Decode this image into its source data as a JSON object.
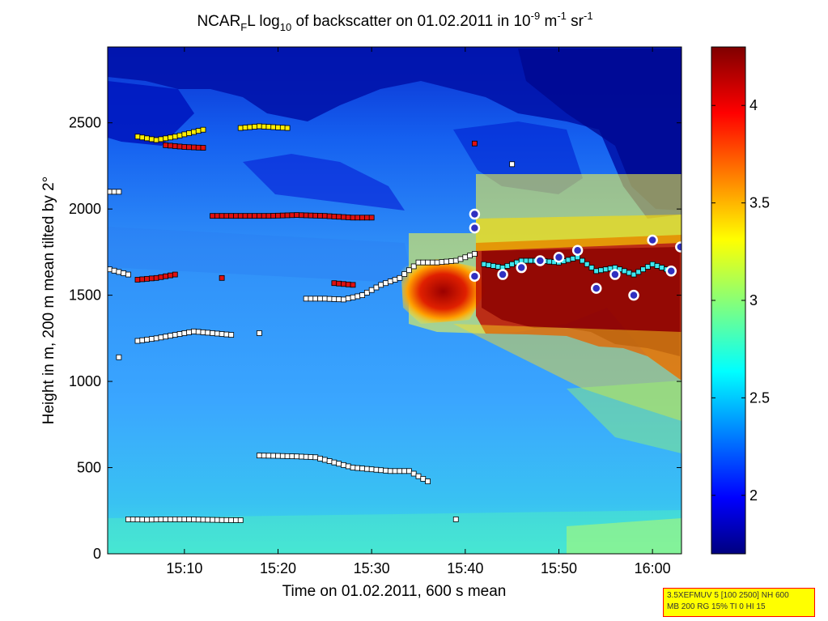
{
  "chart_data": {
    "type": "heatmap",
    "title": {
      "prefix": "NCAR",
      "sub1": "F",
      "mid": "L log",
      "sub2": "10",
      "text": " of backscatter on 01.02.2011 in 10",
      "exp1": "-9",
      "unit_m": " m",
      "exp2": "-1",
      "unit_sr": " sr",
      "exp3": "-1"
    },
    "xlabel": "Time on 01.02.2011, 600 s mean",
    "ylabel": "Height in m, 200 m mean tilted by 2°",
    "x_range": [
      "15:02",
      "16:03"
    ],
    "y_range": [
      0,
      3000
    ],
    "x_ticks": [
      "15:10",
      "15:20",
      "15:30",
      "15:40",
      "15:50",
      "16:00"
    ],
    "y_ticks": [
      "0",
      "500",
      "1000",
      "1500",
      "2000",
      "2500"
    ],
    "colorbar": {
      "range": [
        1.7,
        4.3
      ],
      "ticks": [
        "2",
        "2.5",
        "3",
        "3.5",
        "4"
      ],
      "colormap": "jet"
    },
    "colors": {
      "background_low": "#00007f",
      "fill_main": "#35a8ff",
      "high": "#8b0000",
      "marker_white": "#ffffff",
      "marker_cyan": "#3fe8f0",
      "marker_red": "#e01010",
      "marker_yellow": "#ffee00",
      "marker_magenta": "#ff40ff",
      "marker_circle": "#3030c0"
    },
    "marker_series": [
      {
        "color": "white",
        "points": [
          [
            "15:05",
            1235
          ],
          [
            "15:07",
            1250
          ],
          [
            "15:09",
            1270
          ],
          [
            "15:11",
            1290
          ],
          [
            "15:13",
            1280
          ],
          [
            "15:15",
            1270
          ]
        ]
      },
      {
        "color": "white",
        "points": [
          [
            "15:04",
            200
          ],
          [
            "15:06",
            198
          ],
          [
            "15:08",
            200
          ],
          [
            "15:10",
            200
          ],
          [
            "15:12",
            198
          ],
          [
            "15:14",
            196
          ],
          [
            "15:16",
            195
          ]
        ]
      },
      {
        "color": "white",
        "points": [
          [
            "15:18",
            570
          ],
          [
            "15:20",
            568
          ],
          [
            "15:22",
            565
          ],
          [
            "15:24",
            560
          ],
          [
            "15:26",
            530
          ],
          [
            "15:28",
            500
          ],
          [
            "15:30",
            490
          ],
          [
            "15:32",
            480
          ],
          [
            "15:34",
            480
          ],
          [
            "15:36",
            420
          ]
        ]
      },
      {
        "color": "white",
        "points": [
          [
            "15:23",
            1480
          ],
          [
            "15:25",
            1480
          ],
          [
            "15:27",
            1475
          ],
          [
            "15:29",
            1500
          ],
          [
            "15:31",
            1560
          ],
          [
            "15:33",
            1600
          ],
          [
            "15:35",
            1690
          ],
          [
            "15:37",
            1690
          ],
          [
            "15:39",
            1700
          ],
          [
            "15:41",
            1740
          ]
        ]
      },
      {
        "color": "cyan",
        "points": [
          [
            "15:42",
            1680
          ],
          [
            "15:44",
            1660
          ],
          [
            "15:46",
            1700
          ],
          [
            "15:48",
            1700
          ],
          [
            "15:50",
            1690
          ],
          [
            "15:52",
            1720
          ],
          [
            "15:54",
            1640
          ],
          [
            "15:56",
            1660
          ],
          [
            "15:58",
            1620
          ],
          [
            "16:00",
            1680
          ],
          [
            "16:02",
            1640
          ]
        ]
      },
      {
        "color": "red",
        "points": [
          [
            "15:13",
            1960
          ],
          [
            "15:16",
            1960
          ],
          [
            "15:19",
            1960
          ],
          [
            "15:22",
            1965
          ],
          [
            "15:25",
            1960
          ],
          [
            "15:28",
            1950
          ],
          [
            "15:30",
            1950
          ]
        ]
      },
      {
        "color": "red",
        "points": [
          [
            "15:05",
            1590
          ],
          [
            "15:07",
            1600
          ],
          [
            "15:09",
            1620
          ],
          [
            "15:14",
            1600
          ],
          [
            "15:26",
            1570
          ],
          [
            "15:28",
            1560
          ]
        ]
      },
      {
        "color": "yellow",
        "points": [
          [
            "15:05",
            2420
          ],
          [
            "15:07",
            2400
          ],
          [
            "15:09",
            2420
          ],
          [
            "15:12",
            2460
          ],
          [
            "15:16",
            2470
          ],
          [
            "15:18",
            2480
          ],
          [
            "15:21",
            2470
          ]
        ]
      },
      {
        "color": "red",
        "points": [
          [
            "15:08",
            2370
          ],
          [
            "15:10",
            2360
          ],
          [
            "15:12",
            2355
          ],
          [
            "15:41",
            2380
          ]
        ]
      },
      {
        "color": "white",
        "points": [
          [
            "15:02",
            2100
          ],
          [
            "15:03",
            2100
          ],
          [
            "15:02",
            1650
          ],
          [
            "15:04",
            1620
          ],
          [
            "15:03",
            1140
          ],
          [
            "15:18",
            1280
          ],
          [
            "15:39",
            200
          ],
          [
            "15:45",
            2260
          ]
        ]
      },
      {
        "color": "circle",
        "points": [
          [
            "15:41",
            1970
          ],
          [
            "15:41",
            1890
          ],
          [
            "15:41",
            1610
          ],
          [
            "15:44",
            1620
          ],
          [
            "15:46",
            1660
          ],
          [
            "15:48",
            1700
          ],
          [
            "15:50",
            1720
          ],
          [
            "15:52",
            1760
          ],
          [
            "15:54",
            1540
          ],
          [
            "15:56",
            1620
          ],
          [
            "15:58",
            1500
          ],
          [
            "16:00",
            1820
          ],
          [
            "16:02",
            1640
          ],
          [
            "16:03",
            1780
          ]
        ]
      }
    ]
  },
  "info_box": {
    "line1": "3.5XEFMUV 5 [100 2500] NH 600",
    "line2": "MB 200 RG 15% TI 0 HI 15"
  }
}
